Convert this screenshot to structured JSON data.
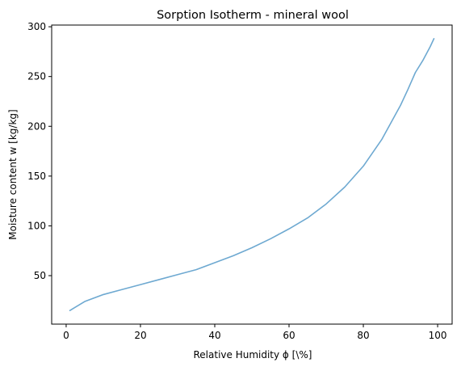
{
  "chart_data": {
    "type": "line",
    "title": "Sorption Isotherm - mineral wool",
    "xlabel": "Relative Humidity ϕ [\\%]",
    "ylabel": "Moisture content w [kg/kg]",
    "xlim": [
      -3.9,
      103.9
    ],
    "ylim": [
      1.3,
      301.7
    ],
    "xticks": [
      0,
      20,
      40,
      60,
      80,
      100
    ],
    "yticks": [
      50,
      100,
      150,
      200,
      250,
      300
    ],
    "grid": false,
    "legend": "none",
    "series_color": "#6ea9d1",
    "series": [
      {
        "x": [
          1,
          5,
          10,
          15,
          20,
          25,
          30,
          35,
          40,
          45,
          50,
          55,
          60,
          65,
          70,
          75,
          80,
          85,
          90,
          92,
          94,
          96,
          98,
          99
        ],
        "y": [
          15,
          24,
          31,
          36,
          41,
          46,
          51,
          56,
          63,
          70,
          78,
          87,
          97,
          108,
          122,
          139,
          160,
          187,
          221,
          237,
          254,
          266,
          280,
          288
        ]
      }
    ]
  }
}
